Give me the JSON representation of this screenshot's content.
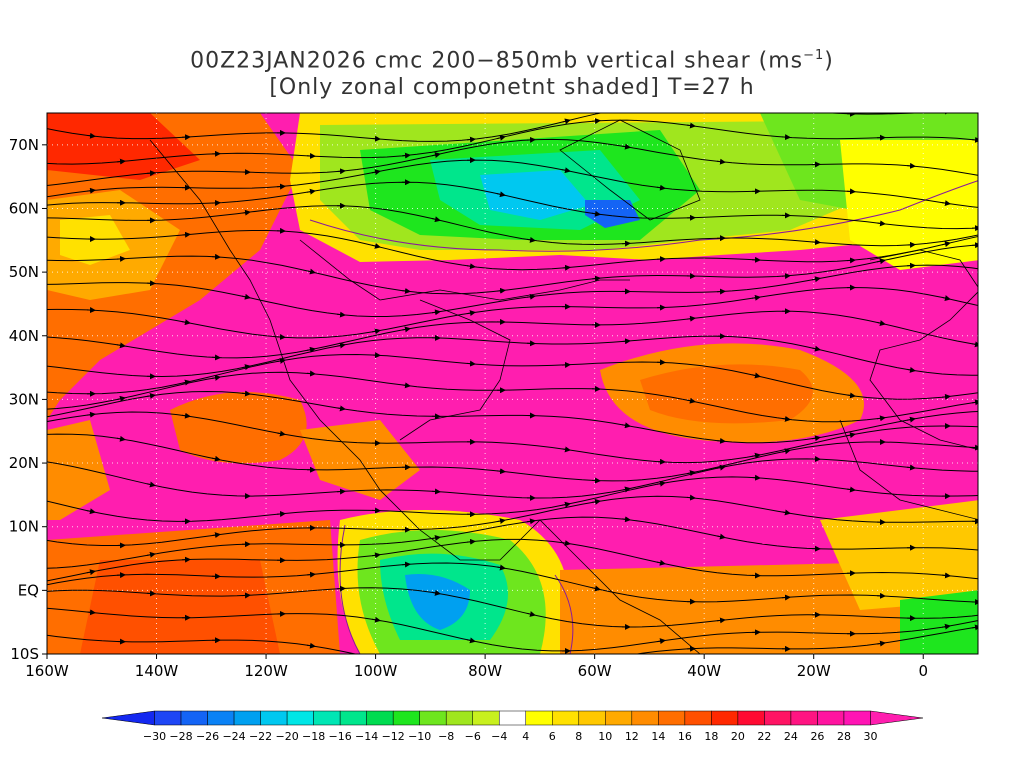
{
  "title_line1": "00Z23JAN2026 cmc 200−850mb vertical shear (ms",
  "title_units_sup": "−1",
  "title_line1_end": ")",
  "title_line2": "[Only zonal componetnt shaded] T=27 h",
  "map": {
    "lon_range": [
      -160,
      10
    ],
    "lat_range": [
      -10,
      75
    ],
    "lat_ticks": [
      {
        "lat": 70,
        "label": "70N"
      },
      {
        "lat": 60,
        "label": "60N"
      },
      {
        "lat": 50,
        "label": "50N"
      },
      {
        "lat": 40,
        "label": "40N"
      },
      {
        "lat": 30,
        "label": "30N"
      },
      {
        "lat": 20,
        "label": "20N"
      },
      {
        "lat": 10,
        "label": "10N"
      },
      {
        "lat": 0,
        "label": "EQ"
      },
      {
        "lat": -10,
        "label": "10S"
      }
    ],
    "lon_ticks": [
      {
        "lon": -160,
        "label": "160W"
      },
      {
        "lon": -140,
        "label": "140W"
      },
      {
        "lon": -120,
        "label": "120W"
      },
      {
        "lon": -100,
        "label": "100W"
      },
      {
        "lon": -80,
        "label": "80W"
      },
      {
        "lon": -60,
        "label": "60W"
      },
      {
        "lon": -40,
        "label": "40W"
      },
      {
        "lon": -20,
        "label": "20W"
      },
      {
        "lon": 0,
        "label": "0"
      }
    ]
  },
  "colorbar": {
    "labels": [
      "−30",
      "−28",
      "−26",
      "−24",
      "−22",
      "−20",
      "−18",
      "−16",
      "−14",
      "−12",
      "−10",
      "−8",
      "−6",
      "−4",
      "4",
      "6",
      "8",
      "10",
      "12",
      "14",
      "16",
      "18",
      "20",
      "22",
      "24",
      "26",
      "28",
      "30"
    ],
    "colors": [
      "#1428f0",
      "#1e46f5",
      "#1464f5",
      "#0a82f5",
      "#00a0f0",
      "#00c8f0",
      "#00e6e6",
      "#00e6b4",
      "#00e68c",
      "#00dc50",
      "#1ee61e",
      "#6ee61e",
      "#a0e61e",
      "#c8f01e",
      "#ffffff",
      "#ffff00",
      "#ffe100",
      "#ffc800",
      "#ffaa00",
      "#ff8c00",
      "#ff6e00",
      "#ff5000",
      "#ff2800",
      "#ff0a32",
      "#ff1464",
      "#ff1482",
      "#ff14a0",
      "#ff14b4",
      "#ff1eaf"
    ]
  }
}
